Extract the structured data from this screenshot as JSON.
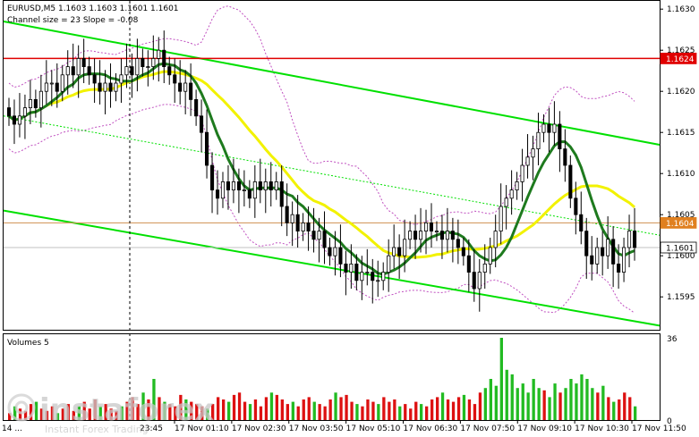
{
  "header": {
    "symbol_line": "EURUSD,M5  1.1603 1.1603 1.1601 1.1601",
    "channel_line": "Channel size = 23 Slope = -0.08"
  },
  "volumes_label": "Volumes 5",
  "watermark": {
    "brand": "instaforex",
    "tagline": "Instant Forex Trading"
  },
  "colors": {
    "channel": "#00e000",
    "fast_ma": "#1e7a1e",
    "slow_ma": "#f2f200",
    "envelope": "#c050c0",
    "resistance": "#e00000",
    "price_line": "#d09050",
    "volume": "#dd1111",
    "volume_spike": "#22bb22"
  },
  "chart_data": [
    {
      "type": "candlestick",
      "title": "EURUSD,M5",
      "series_ohlc_last": {
        "open": 1.1603,
        "high": 1.1603,
        "low": 1.1601,
        "close": 1.1601
      },
      "ylim": [
        1.1591,
        1.1631
      ],
      "y_ticks": [
        "1.1630",
        "1.1625",
        "1.1620",
        "1.1615",
        "1.1610",
        "1.1605",
        "1.1600",
        "1.1595"
      ],
      "x_ticks": [
        "17 Nov 01:10",
        "17 Nov 02:30",
        "17 Nov 03:50",
        "17 Nov 05:10",
        "17 Nov 06:30",
        "17 Nov 07:50",
        "17 Nov 09:10",
        "17 Nov 10:30",
        "17 Nov 11:50"
      ],
      "x_tick_partial": [
        "14 ...",
        "23:45"
      ],
      "price_tags": [
        {
          "label": "1.1624",
          "value": 1.1624,
          "color": "#e00000"
        },
        {
          "label": "1.1604",
          "value": 1.1604,
          "color": "#e08020"
        },
        {
          "label": "1.1601",
          "value": 1.1601,
          "color": "#ffffff"
        }
      ],
      "closes": [
        1.1617,
        1.1616,
        1.1617,
        1.1618,
        1.1619,
        1.1618,
        1.162,
        1.1621,
        1.1621,
        1.162,
        1.1622,
        1.1623,
        1.1622,
        1.1624,
        1.1623,
        1.1622,
        1.1621,
        1.162,
        1.1621,
        1.162,
        1.1621,
        1.1622,
        1.1623,
        1.1622,
        1.1624,
        1.1623,
        1.1623,
        1.1624,
        1.1625,
        1.1623,
        1.1622,
        1.1621,
        1.162,
        1.1621,
        1.1619,
        1.1617,
        1.1615,
        1.1611,
        1.1608,
        1.1607,
        1.1609,
        1.1608,
        1.1609,
        1.1608,
        1.1608,
        1.1607,
        1.1609,
        1.1608,
        1.1609,
        1.1608,
        1.1609,
        1.1606,
        1.1604,
        1.1605,
        1.1603,
        1.1604,
        1.1603,
        1.1602,
        1.1603,
        1.1601,
        1.16,
        1.1601,
        1.1599,
        1.1598,
        1.1599,
        1.1597,
        1.1598,
        1.1598,
        1.1597,
        1.1597,
        1.1598,
        1.16,
        1.1601,
        1.16,
        1.1602,
        1.1603,
        1.1602,
        1.1603,
        1.1604,
        1.1603,
        1.1603,
        1.1602,
        1.1603,
        1.1602,
        1.1601,
        1.16,
        1.1598,
        1.1596,
        1.1598,
        1.1599,
        1.1601,
        1.1603,
        1.1606,
        1.1607,
        1.1608,
        1.1609,
        1.1611,
        1.1612,
        1.1613,
        1.1615,
        1.1616,
        1.1615,
        1.1616,
        1.1613,
        1.1611,
        1.1607,
        1.1605,
        1.1603,
        1.16,
        1.1599,
        1.1601,
        1.16,
        1.1602,
        1.1599,
        1.1598,
        1.1601,
        1.1603,
        1.1601
      ],
      "resistance": 1.1624,
      "price_line": 1.1604
    },
    {
      "type": "bar",
      "title": "Volumes 5",
      "ylim": [
        0,
        36
      ],
      "y_ticks": [
        "36",
        "0"
      ],
      "values": [
        3,
        6,
        5,
        4,
        7,
        8,
        5,
        4,
        6,
        3,
        5,
        7,
        4,
        6,
        8,
        5,
        9,
        6,
        7,
        5,
        4,
        6,
        8,
        10,
        7,
        12,
        9,
        18,
        10,
        8,
        7,
        6,
        11,
        9,
        8,
        7,
        6,
        5,
        7,
        10,
        9,
        8,
        11,
        12,
        8,
        7,
        9,
        6,
        10,
        12,
        11,
        9,
        7,
        8,
        6,
        9,
        10,
        8,
        7,
        6,
        9,
        12,
        10,
        11,
        8,
        7,
        6,
        9,
        8,
        7,
        10,
        8,
        9,
        6,
        7,
        5,
        8,
        7,
        6,
        9,
        10,
        12,
        9,
        8,
        10,
        11,
        9,
        7,
        12,
        14,
        18,
        15,
        36,
        22,
        20,
        14,
        16,
        12,
        18,
        14,
        13,
        10,
        16,
        12,
        14,
        18,
        16,
        20,
        18,
        14,
        12,
        15,
        10,
        8,
        9,
        12,
        10,
        6
      ]
    }
  ]
}
